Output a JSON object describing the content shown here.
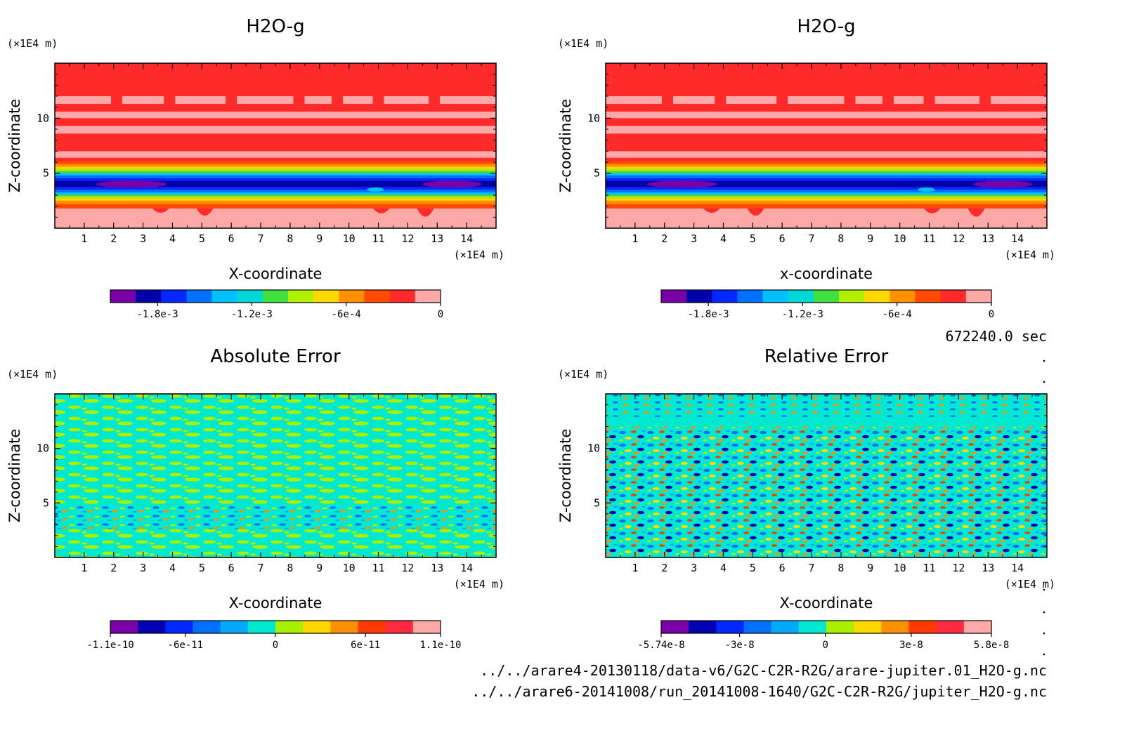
{
  "colors": {
    "h2o_levels": [
      "#7a00a8",
      "#0000a8",
      "#0028ff",
      "#0070ff",
      "#00c0ff",
      "#00d8d8",
      "#40e040",
      "#b0f000",
      "#ffd800",
      "#ff9000",
      "#ff4a00",
      "#ff2a2a",
      "#ffa8a8"
    ],
    "abs_levels": [
      "#7a00a8",
      "#0000b0",
      "#0028ff",
      "#0070ff",
      "#00a8ff",
      "#00e8d0",
      "#a8f000",
      "#ffd800",
      "#ff9000",
      "#ff3a00",
      "#ff2a40",
      "#ffa8a8"
    ],
    "rel_levels": [
      "#7a00a8",
      "#0000b0",
      "#0028ff",
      "#0070ff",
      "#00a8ff",
      "#00e8d0",
      "#a8f000",
      "#ffd800",
      "#ff9000",
      "#ff3a00",
      "#ff2a40",
      "#ffa8a8"
    ]
  },
  "chart_data": [
    {
      "type": "heatmap",
      "title": "H2O-g",
      "xlabel": "X-coordinate",
      "ylabel": "Z-coordinate",
      "x_unit": "(×1E4 m)",
      "y_unit": "(×1E4 m)",
      "xlim": [
        0,
        15
      ],
      "ylim": [
        0,
        15
      ],
      "xticks": [
        "1",
        "2",
        "3",
        "4",
        "5",
        "6",
        "7",
        "8",
        "9",
        "10",
        "11",
        "12",
        "13",
        "14"
      ],
      "yticks": [
        "5",
        "10"
      ],
      "z_bands": [
        {
          "z0": 0.0,
          "z1": 1.8,
          "value": 0.0
        },
        {
          "z0": 1.8,
          "z1": 2.6,
          "value": -0.0001
        },
        {
          "z0": 2.6,
          "z1": 3.0,
          "value": -0.0006
        },
        {
          "z0": 3.0,
          "z1": 3.6,
          "value": -0.0014
        },
        {
          "z0": 3.6,
          "z1": 4.6,
          "value": -0.0019
        },
        {
          "z0": 4.6,
          "z1": 5.4,
          "value": -0.0012
        },
        {
          "z0": 5.4,
          "z1": 6.2,
          "value": -0.0003
        },
        {
          "z0": 6.2,
          "z1": 15.0,
          "value": -5e-05
        }
      ],
      "colorbar": {
        "ticks": [
          "-1.8e-3",
          "-1.2e-3",
          "-6e-4",
          "0"
        ],
        "tick_values": [
          -0.0018,
          -0.0012,
          -0.0006,
          0
        ],
        "min": -0.0021,
        "max": 0.0
      }
    },
    {
      "type": "heatmap",
      "title": "H2O-g",
      "xlabel": "x-coordinate",
      "ylabel": "Z-coordinate",
      "x_unit": "(×1E4 m)",
      "y_unit": "(×1E4 m)",
      "xlim": [
        0,
        15
      ],
      "ylim": [
        0,
        15
      ],
      "xticks": [
        "1",
        "2",
        "3",
        "4",
        "5",
        "6",
        "7",
        "8",
        "9",
        "10",
        "11",
        "12",
        "13",
        "14"
      ],
      "yticks": [
        "5",
        "10"
      ],
      "colorbar": {
        "ticks": [
          "-1.8e-3",
          "-1.2e-3",
          "-6e-4",
          "0"
        ],
        "tick_values": [
          -0.0018,
          -0.0012,
          -0.0006,
          0
        ],
        "min": -0.0021,
        "max": 0.0
      }
    },
    {
      "type": "heatmap",
      "title": "Absolute Error",
      "xlabel": "X-coordinate",
      "ylabel": "Z-coordinate",
      "x_unit": "(×1E4 m)",
      "y_unit": "(×1E4 m)",
      "xlim": [
        0,
        15
      ],
      "ylim": [
        0,
        15
      ],
      "xticks": [
        "1",
        "2",
        "3",
        "4",
        "5",
        "6",
        "7",
        "8",
        "9",
        "10",
        "11",
        "12",
        "13",
        "14"
      ],
      "yticks": [
        "5",
        "10"
      ],
      "colorbar": {
        "ticks": [
          "-1.1e-10",
          "-6e-11",
          "0",
          "6e-11",
          "1.1e-10"
        ],
        "tick_values": [
          -1.1e-10,
          -6e-11,
          0,
          6e-11,
          1.1e-10
        ],
        "min": -1.1e-10,
        "max": 1.1e-10
      }
    },
    {
      "type": "heatmap",
      "title": "Relative Error",
      "xlabel": "X-coordinate",
      "ylabel": "Z-coordinate",
      "x_unit": "(×1E4 m)",
      "y_unit": "(×1E4 m)",
      "xlim": [
        0,
        15
      ],
      "ylim": [
        0,
        15
      ],
      "xticks": [
        "1",
        "2",
        "3",
        "4",
        "5",
        "6",
        "7",
        "8",
        "9",
        "10",
        "11",
        "12",
        "13",
        "14"
      ],
      "yticks": [
        "5",
        "10"
      ],
      "colorbar": {
        "ticks": [
          "-5.74e-8",
          "-3e-8",
          "0",
          "3e-8",
          "5.8e-8"
        ],
        "tick_values": [
          -5.74e-08,
          -3e-08,
          0,
          3e-08,
          5.8e-08
        ],
        "min": -5.74e-08,
        "max": 5.8e-08
      }
    }
  ],
  "footer": {
    "time": "672240.0 sec",
    "file1": "../../arare4-20130118/data-v6/G2C-C2R-R2G/arare-jupiter.01_H2O-g.nc",
    "file2": "../../arare6-20141008/run_20141008-1640/G2C-C2R-R2G/jupiter_H2O-g.nc"
  }
}
